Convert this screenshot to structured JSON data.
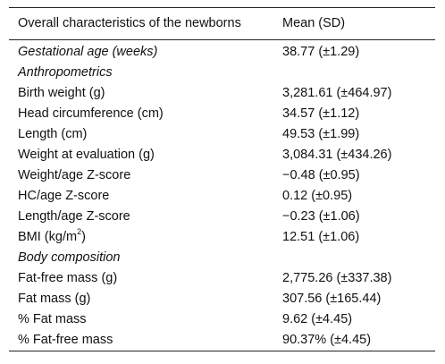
{
  "table": {
    "headers": [
      "Overall characteristics of the newborns",
      "Mean (SD)"
    ],
    "rows": [
      {
        "label": "Gestational age (weeks)",
        "value": "38.77 (±1.29)",
        "italic": true
      },
      {
        "label": "Anthropometrics",
        "value": "",
        "italic": true
      },
      {
        "label": "Birth weight (g)",
        "value": "3,281.61 (±464.97)"
      },
      {
        "label": "Head circumference (cm)",
        "value": "34.57 (±1.12)"
      },
      {
        "label": "Length (cm)",
        "value": "49.53 (±1.99)"
      },
      {
        "label": "Weight at evaluation (g)",
        "value": "3,084.31 (±434.26)"
      },
      {
        "label": "Weight/age Z-score",
        "value": "−0.48 (±0.95)"
      },
      {
        "label": "HC/age Z-score",
        "value": "0.12 (±0.95)"
      },
      {
        "label": "Length/age Z-score",
        "value": "−0.23 (±1.06)"
      },
      {
        "label": "BMI (kg/m",
        "label_sup": "2",
        "label_tail": ")",
        "value": "12.51 (±1.06)"
      },
      {
        "label": "Body composition",
        "value": "",
        "italic": true
      },
      {
        "label": "Fat-free mass (g)",
        "value": "2,775.26 (±337.38)"
      },
      {
        "label": "Fat mass (g)",
        "value": "307.56 (±165.44)"
      },
      {
        "label": "% Fat mass",
        "value": "9.62 (±4.45)"
      },
      {
        "label": "% Fat-free mass",
        "value": "90.37% (±4.45)"
      }
    ]
  }
}
